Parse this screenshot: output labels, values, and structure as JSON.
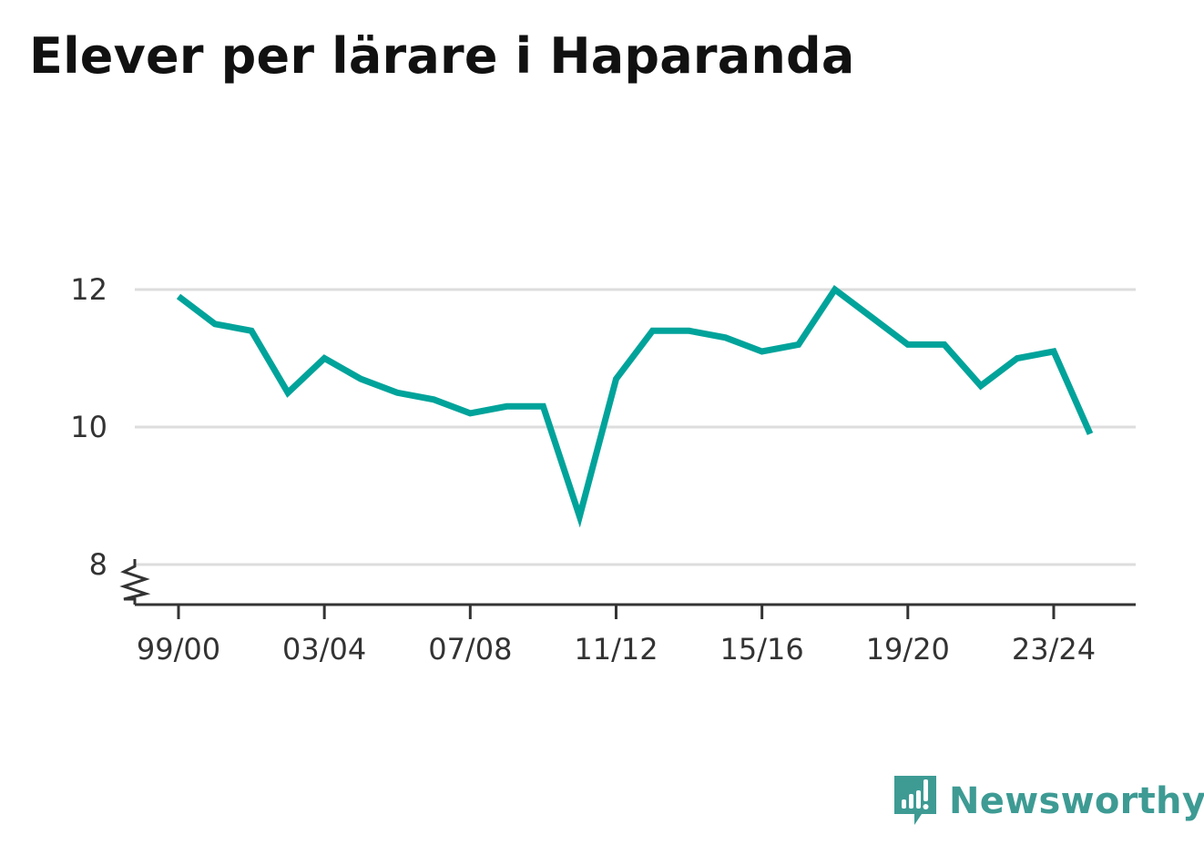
{
  "title": "Elever per lärare i Haparanda",
  "brand": {
    "name": "Newsworthy",
    "icon": "newsworthy-logo-icon",
    "color": "#3d9b94"
  },
  "colors": {
    "line": "#00a39a",
    "grid": "#dddddd",
    "axis": "#333333"
  },
  "chart_data": {
    "type": "line",
    "title": "Elever per lärare i Haparanda",
    "xlabel": "",
    "ylabel": "",
    "x": [
      "99/00",
      "00/01",
      "01/02",
      "02/03",
      "03/04",
      "04/05",
      "05/06",
      "06/07",
      "07/08",
      "08/09",
      "09/10",
      "10/11",
      "11/12",
      "12/13",
      "13/14",
      "14/15",
      "15/16",
      "16/17",
      "17/18",
      "18/19",
      "19/20",
      "20/21",
      "21/22",
      "22/23",
      "23/24",
      "24/25"
    ],
    "x_tick_labels": [
      "99/00",
      "03/04",
      "07/08",
      "11/12",
      "15/16",
      "19/20",
      "23/24"
    ],
    "y_ticks": [
      8,
      10,
      12
    ],
    "ylim": [
      8,
      12.2
    ],
    "y_axis_break": true,
    "grid": true,
    "series": [
      {
        "values": [
          11.9,
          11.5,
          11.4,
          10.5,
          11.0,
          10.7,
          10.5,
          10.4,
          10.2,
          10.3,
          10.3,
          8.7,
          10.7,
          11.4,
          11.4,
          11.3,
          11.1,
          11.2,
          12.0,
          11.6,
          11.2,
          11.2,
          10.6,
          11.0,
          11.1,
          9.9
        ]
      }
    ]
  }
}
